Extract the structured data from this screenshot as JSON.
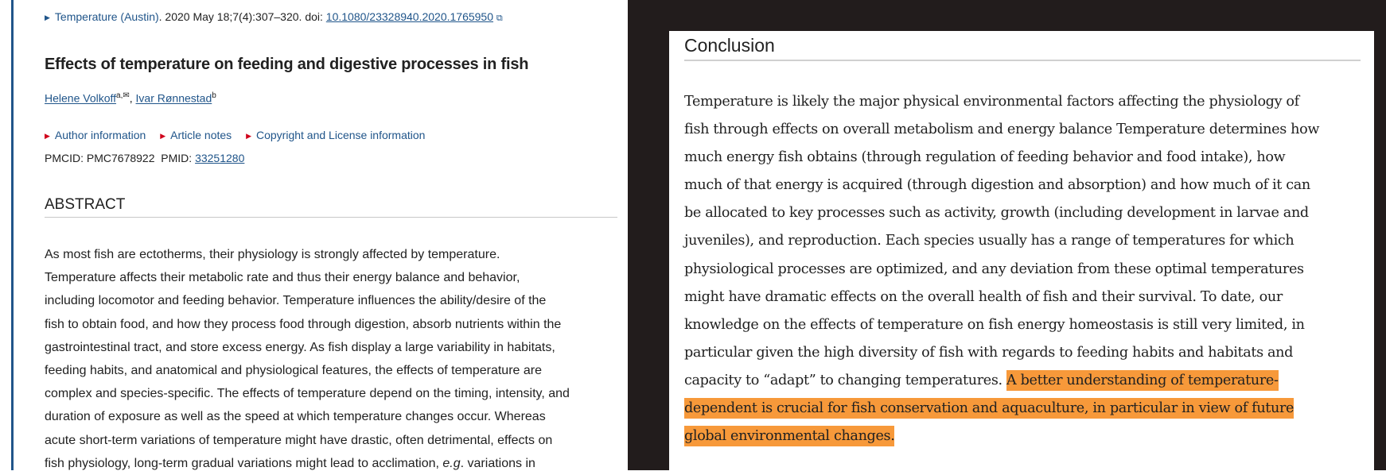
{
  "citation": {
    "journal": "Temperature (Austin)",
    "details": ". 2020 May 18;7(4):307–320. doi: ",
    "doi": "10.1080/23328940.2020.1765950",
    "external_icon": "external-link-icon"
  },
  "article": {
    "title": "Effects of temperature on feeding and digestive processes in fish"
  },
  "authors": [
    {
      "name": "Helene Volkoff",
      "sup": "a,✉"
    },
    {
      "name": "Ivar Rønnestad",
      "sup": "b"
    }
  ],
  "links": [
    "Author information",
    "Article notes",
    "Copyright and License information"
  ],
  "ids": {
    "pmcid_label": "PMCID: PMC7678922",
    "pmid_label": "PMID: ",
    "pmid": "33251280"
  },
  "abstract": {
    "heading": "ABSTRACT",
    "lines": [
      "As most fish are ectotherms, their physiology is strongly affected by temperature.",
      "Temperature affects their metabolic rate and thus their energy balance and behavior,",
      "including locomotor and feeding behavior. Temperature influences the ability/desire of the",
      "fish to obtain food, and how they process food through digestion, absorb nutrients within the",
      "gastrointestinal tract, and store excess energy. As fish display a large variability in habitats,",
      "feeding habits, and anatomical and physiological features, the effects of temperature are",
      "complex and species-specific. The effects of temperature depend on the timing, intensity, and",
      "duration of exposure as well as the speed at which temperature changes occur. Whereas",
      "acute short-term variations of temperature might have drastic, often detrimental, effects on"
    ],
    "last_line_pre": "fish physiology, long-term gradual variations might lead to acclimation, ",
    "last_line_italic": "e.g",
    "last_line_post": ". variations in"
  },
  "conclusion": {
    "heading": "Conclusion",
    "lines": [
      "Temperature is likely the major physical environmental factors affecting the physiology of",
      "fish through effects on overall metabolism and energy balance Temperature determines how",
      "much energy fish obtains (through regulation of feeding behavior and food intake), how",
      "much of that energy is acquired (through digestion and absorption) and how much of it can",
      "be allocated to key processes such as activity, growth (including development in larvae and",
      "juveniles), and reproduction. Each species usually has a range of temperatures for which",
      "physiological processes are optimized, and any deviation from these optimal temperatures",
      "might have dramatic effects on the overall health of fish and their survival. To date, our",
      "knowledge on the effects of temperature on fish energy homeostasis is still very limited, in",
      "particular given the high diversity of fish with regards to feeding habits and habitats and"
    ],
    "line11_plain": "capacity to “adapt” to changing temperatures. ",
    "highlighted": [
      "A better understanding of temperature-",
      "dependent is crucial for fish conservation and aquaculture, in particular in view of future",
      "global environmental changes."
    ],
    "highlight_color": "#f7993a"
  },
  "colors": {
    "link": "#20558a",
    "accent_bar": "#20558a",
    "dark_bg": "#221c1c"
  }
}
